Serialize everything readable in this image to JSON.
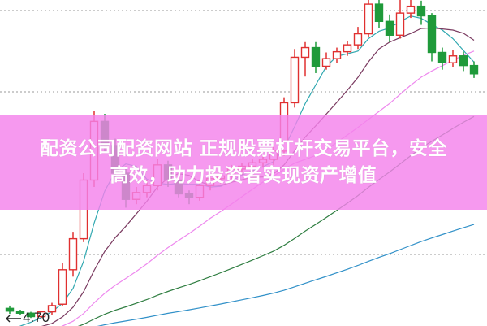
{
  "banner": {
    "line1": "配资公司配资网站 正规股票杠杆交易平台，安全",
    "line2": "高效，助力投资者实现资产增值"
  },
  "chart_data": {
    "type": "candlestick",
    "title": "",
    "low_label": "4.70",
    "colors": {
      "up": "#e03030",
      "down": "#1f9a3a",
      "ma_short": "#30a8b0",
      "ma_mid": "#7a3a60",
      "ma_long": "#ee88ee",
      "ma_longer": "#2e7d40",
      "ma_longest": "#3090c8",
      "grid": "#999999",
      "banner": "#f482ec"
    },
    "grid": "dotted horizontal",
    "ylim": [
      4.62,
      9.31
    ],
    "candles": [
      [
        4.84,
        4.88,
        4.76,
        4.8
      ],
      [
        4.8,
        4.82,
        4.74,
        4.77
      ],
      [
        4.77,
        4.79,
        4.7,
        4.72
      ],
      [
        4.72,
        4.8,
        4.7,
        4.79
      ],
      [
        4.79,
        4.92,
        4.75,
        4.88
      ],
      [
        4.9,
        5.5,
        4.88,
        5.4
      ],
      [
        5.4,
        5.95,
        5.3,
        5.85
      ],
      [
        5.85,
        6.8,
        5.8,
        6.7
      ],
      [
        6.7,
        7.7,
        6.6,
        7.55
      ],
      [
        7.55,
        7.66,
        7.1,
        7.2
      ],
      [
        7.2,
        7.3,
        6.7,
        6.8
      ],
      [
        6.8,
        6.9,
        6.3,
        6.42
      ],
      [
        6.42,
        6.6,
        6.35,
        6.52
      ],
      [
        6.52,
        6.7,
        6.45,
        6.62
      ],
      [
        6.62,
        7.0,
        6.55,
        6.92
      ],
      [
        6.92,
        6.98,
        6.6,
        6.7
      ],
      [
        6.7,
        6.75,
        6.45,
        6.5
      ],
      [
        6.5,
        6.55,
        6.35,
        6.45
      ],
      [
        6.45,
        6.7,
        6.4,
        6.62
      ],
      [
        6.62,
        6.78,
        6.55,
        6.72
      ],
      [
        6.72,
        6.82,
        6.65,
        6.76
      ],
      [
        6.76,
        6.92,
        6.7,
        6.86
      ],
      [
        6.86,
        6.95,
        6.78,
        6.9
      ],
      [
        6.9,
        7.0,
        6.84,
        6.95
      ],
      [
        6.95,
        7.05,
        6.88,
        7.0
      ],
      [
        7.0,
        7.2,
        6.92,
        7.12
      ],
      [
        7.12,
        7.9,
        7.05,
        7.82
      ],
      [
        7.82,
        8.6,
        7.75,
        8.48
      ],
      [
        8.48,
        8.7,
        8.2,
        8.62
      ],
      [
        8.62,
        8.7,
        8.25,
        8.35
      ],
      [
        8.35,
        8.55,
        8.3,
        8.46
      ],
      [
        8.46,
        8.62,
        8.4,
        8.56
      ],
      [
        8.56,
        8.72,
        8.5,
        8.66
      ],
      [
        8.66,
        8.92,
        8.6,
        8.82
      ],
      [
        8.82,
        9.4,
        8.78,
        9.25
      ],
      [
        9.25,
        9.4,
        8.9,
        9.0
      ],
      [
        9.0,
        9.1,
        8.7,
        8.8
      ],
      [
        8.8,
        9.35,
        8.75,
        9.12
      ],
      [
        9.12,
        9.4,
        9.05,
        9.22
      ],
      [
        9.22,
        9.3,
        8.95,
        9.08
      ],
      [
        9.08,
        9.12,
        8.42,
        8.55
      ],
      [
        8.55,
        8.62,
        8.3,
        8.4
      ],
      [
        8.4,
        8.58,
        8.34,
        8.5
      ],
      [
        8.5,
        8.56,
        8.28,
        8.36
      ],
      [
        8.36,
        8.42,
        8.18,
        8.24
      ]
    ],
    "moving_averages": [
      {
        "period": 5,
        "color_key": "ma_short"
      },
      {
        "period": 10,
        "color_key": "ma_mid"
      },
      {
        "period": 20,
        "color_key": "ma_long"
      },
      {
        "period": 40,
        "color_key": "ma_longer"
      },
      {
        "period": 80,
        "color_key": "ma_longest"
      }
    ]
  }
}
